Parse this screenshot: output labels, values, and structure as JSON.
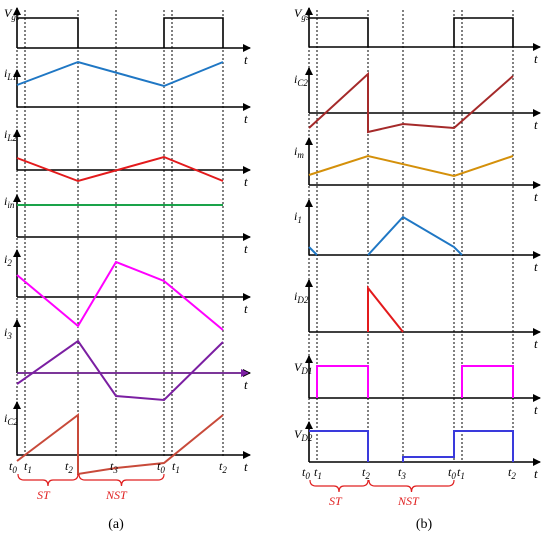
{
  "panels": [
    {
      "caption": "(a)",
      "rows": [
        {
          "label": "V",
          "sub": "gs",
          "color": "#000000"
        },
        {
          "label": "i",
          "sub": "L1",
          "color": "#1f77c4"
        },
        {
          "label": "i",
          "sub": "L2",
          "color": "#e31a1c"
        },
        {
          "label": "i",
          "sub": "in",
          "color": "#1aa34a"
        },
        {
          "label": "i",
          "sub": "2",
          "color": "#ff00ff"
        },
        {
          "label": "i",
          "sub": "3",
          "color": "#7b1fa2"
        },
        {
          "label": "i",
          "sub": "C2",
          "color": "#c84a3a"
        }
      ],
      "time_ticks": [
        {
          "name": "t",
          "sub": "0"
        },
        {
          "name": "t",
          "sub": "1"
        },
        {
          "name": "t",
          "sub": "2"
        },
        {
          "name": "t",
          "sub": "3"
        },
        {
          "name": "t",
          "sub": "0"
        },
        {
          "name": "t",
          "sub": "1"
        },
        {
          "name": "t",
          "sub": "2"
        }
      ],
      "intervals": [
        {
          "label": "ST"
        },
        {
          "label": "NST"
        }
      ]
    },
    {
      "caption": "(b)",
      "rows": [
        {
          "label": "V",
          "sub": "gs",
          "color": "#000000"
        },
        {
          "label": "i",
          "sub": "C2",
          "color": "#a52a2a"
        },
        {
          "label": "i",
          "sub": "m",
          "color": "#d4900a"
        },
        {
          "label": "i",
          "sub": "1",
          "color": "#1f77c4"
        },
        {
          "label": "i",
          "sub": "D2",
          "color": "#e31a1c"
        },
        {
          "label": "V",
          "sub": "D1",
          "color": "#ff00ff"
        },
        {
          "label": "V",
          "sub": "D2",
          "color": "#3a3adc"
        }
      ],
      "time_ticks": [
        {
          "name": "t",
          "sub": "0"
        },
        {
          "name": "t",
          "sub": "1"
        },
        {
          "name": "t",
          "sub": "2"
        },
        {
          "name": "t",
          "sub": "3"
        },
        {
          "name": "t",
          "sub": "0"
        },
        {
          "name": "t",
          "sub": "1"
        },
        {
          "name": "t",
          "sub": "2"
        }
      ],
      "intervals": [
        {
          "label": "ST"
        },
        {
          "label": "NST"
        }
      ]
    }
  ],
  "axis_label": "t"
}
